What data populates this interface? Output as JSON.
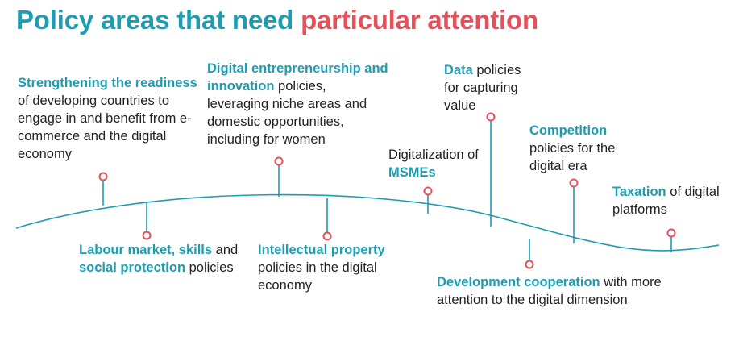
{
  "title": {
    "part1": "Policy areas that need",
    "part2": "particular attention"
  },
  "colors": {
    "teal": "#1f9db0",
    "red": "#e5505b",
    "text": "#222222"
  },
  "items": [
    {
      "id": "readiness",
      "hl": "Strengthening the readiness",
      "rest": "of developing countries to engage in and benefit from e-commerce and the digital economy"
    },
    {
      "id": "labour",
      "hl1": "Labour market, skills",
      "mid": "and",
      "hl2": "social protection",
      "rest": "policies"
    },
    {
      "id": "entrepreneurship",
      "hl": "Digital entrepreneurship and innovation",
      "rest": "policies, leveraging niche areas and domestic opportunities, including for women"
    },
    {
      "id": "ip",
      "hl": "Intellectual property",
      "rest": "policies in the digital economy"
    },
    {
      "id": "msmes",
      "pre": "Digitalization of",
      "hl": "MSMEs"
    },
    {
      "id": "data",
      "hl": "Data",
      "rest": "policies for capturing value"
    },
    {
      "id": "devcoop",
      "hl": "Development cooperation",
      "rest": "with more attention to the digital dimension"
    },
    {
      "id": "competition",
      "hl": "Competition",
      "rest": "policies for the digital era"
    },
    {
      "id": "taxation",
      "hl": "Taxation",
      "rest": "of digital platforms"
    }
  ]
}
